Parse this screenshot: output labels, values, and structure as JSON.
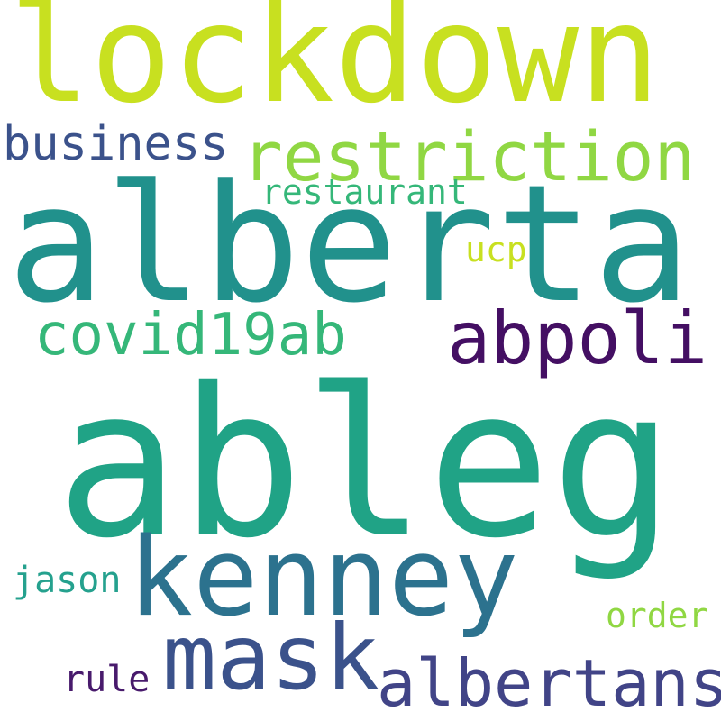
{
  "words": [
    {
      "text": "lockdown",
      "color": "#c8e020"
    },
    {
      "text": "restriction",
      "color": "#90d743"
    },
    {
      "text": "business",
      "color": "#3b528b"
    },
    {
      "text": "restaurant",
      "color": "#35b779"
    },
    {
      "text": "alberta",
      "color": "#21918c"
    },
    {
      "text": "ucp",
      "color": "#c8e020"
    },
    {
      "text": "covid19ab",
      "color": "#35b779"
    },
    {
      "text": "abpoli",
      "color": "#440f63"
    },
    {
      "text": "ableg",
      "color": "#20a386"
    },
    {
      "text": "kenney",
      "color": "#2c728e"
    },
    {
      "text": "jason",
      "color": "#25a18e"
    },
    {
      "text": "mask",
      "color": "#3b528b"
    },
    {
      "text": "order",
      "color": "#90d743"
    },
    {
      "text": "rule",
      "color": "#481a6c"
    },
    {
      "text": "albertans",
      "color": "#414487"
    }
  ]
}
